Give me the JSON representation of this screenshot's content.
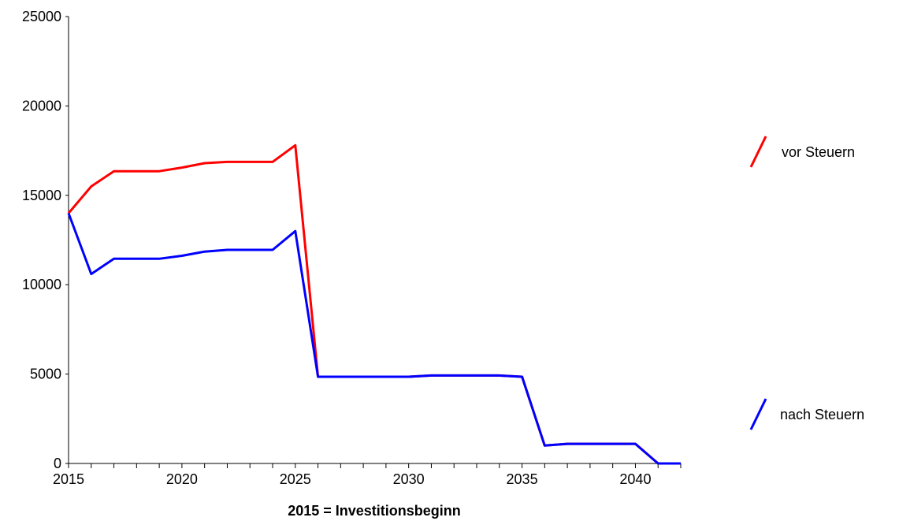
{
  "chart_data": {
    "type": "line",
    "title": "",
    "xlabel": "2015 = Investitionsbeginn",
    "ylabel": "",
    "xlim": [
      2015,
      2042
    ],
    "ylim": [
      0,
      25000
    ],
    "x_tick_labels": [
      "2015",
      "2020",
      "2025",
      "2030",
      "2035",
      "2040"
    ],
    "y_tick_labels": [
      "0",
      "5000",
      "10000",
      "15000",
      "20000",
      "25000"
    ],
    "x": [
      2015,
      2016,
      2017,
      2018,
      2019,
      2020,
      2021,
      2022,
      2023,
      2024,
      2025,
      2026,
      2027,
      2028,
      2029,
      2030,
      2031,
      2032,
      2033,
      2034,
      2035,
      2036,
      2037,
      2038,
      2039,
      2040,
      2041,
      2042
    ],
    "series": [
      {
        "name": "vor Steuern",
        "color": "#ff0000",
        "values": [
          14000,
          15500,
          16350,
          16350,
          16350,
          16550,
          16800,
          16870,
          16870,
          16870,
          17800,
          4850,
          4850,
          4850,
          4850,
          4850,
          4920,
          4920,
          4920,
          4920,
          4850,
          1000,
          1100,
          1100,
          1100,
          1100,
          0,
          0
        ]
      },
      {
        "name": "nach Steuern",
        "color": "#0000ff",
        "values": [
          14000,
          10600,
          11450,
          11450,
          11450,
          11620,
          11850,
          11950,
          11950,
          11950,
          13000,
          4850,
          4850,
          4850,
          4850,
          4850,
          4920,
          4920,
          4920,
          4920,
          4850,
          1000,
          1100,
          1100,
          1100,
          1100,
          0,
          0
        ]
      }
    ],
    "legend_position": "right",
    "grid": false
  }
}
